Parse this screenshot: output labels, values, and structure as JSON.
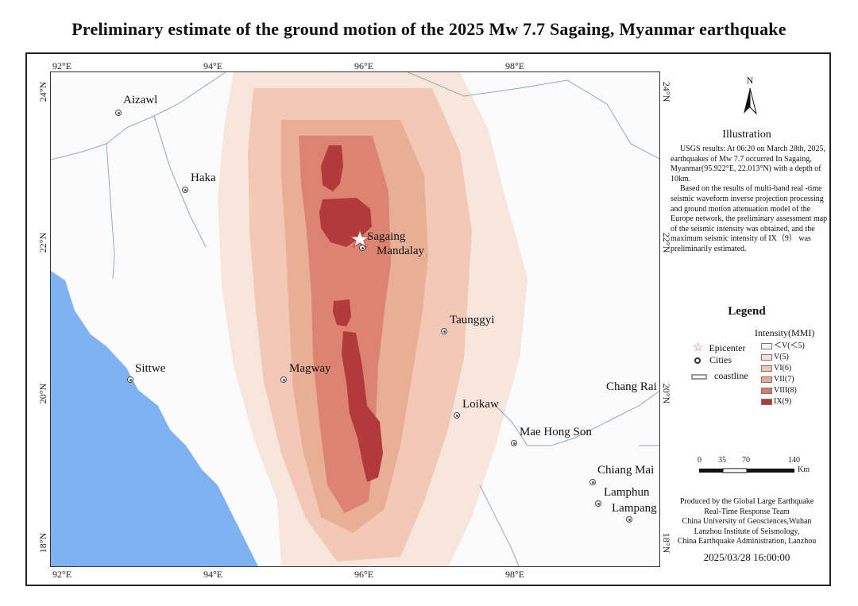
{
  "title": "Preliminary estimate of the ground motion of the 2025 Mw 7.7 Sagaing, Myanmar earthquake",
  "axes": {
    "lon_ticks": [
      "92°E",
      "94°E",
      "96°E",
      "98°E"
    ],
    "lat_ticks": [
      "24°N",
      "22°N",
      "20°N",
      "18°N"
    ]
  },
  "cities": [
    {
      "name": "Aizawl"
    },
    {
      "name": "Haka"
    },
    {
      "name": "Sagaing"
    },
    {
      "name": "Mandalay"
    },
    {
      "name": "Taunggyi"
    },
    {
      "name": "Sittwe"
    },
    {
      "name": "Magway"
    },
    {
      "name": "Loikaw"
    },
    {
      "name": "Mae Hong Son"
    },
    {
      "name": "Chang Rai"
    },
    {
      "name": "Chiang Mai"
    },
    {
      "name": "Lamphun"
    },
    {
      "name": "Lampang"
    }
  ],
  "north_label": "N",
  "illustration": {
    "title": "Illustration",
    "paragraphs": [
      "USGS results: At 06:20 on March 28th, 2025, earthquakes of Mw 7.7 occurred In Sagaing, Myanmar(95.922°E, 22.013°N) with a depth of 10km.",
      "Based on the results of multi-band real -time seismic waveform inverse projection processing and ground motion attenuation model of the Europe network, the preliminary assessment map of the seismic intensity was obtained, and the maximum seismic intensity of IX（9） was preliminarily estimated."
    ]
  },
  "legend": {
    "title": "Legend",
    "epicenter": "Epicenter",
    "cities": "Cities",
    "coastline": "coastline",
    "intensity_title": "Intensity(MMI)",
    "intensity_classes": [
      {
        "label": "＜V(＜5)",
        "color": "#f6f2ee"
      },
      {
        "label": "V(5)",
        "color": "#f7e0d4"
      },
      {
        "label": "VI(6)",
        "color": "#f1c5b0"
      },
      {
        "label": "VII(7)",
        "color": "#e8a890"
      },
      {
        "label": "VIII(8)",
        "color": "#d97a68"
      },
      {
        "label": "IX(9)",
        "color": "#b23a3a"
      }
    ]
  },
  "scale_bar": {
    "labels": [
      "0",
      "35",
      "70",
      "140"
    ],
    "unit": "Km"
  },
  "credits": [
    "Produced by the Global Large Earthquake",
    "Real-Time Response Team",
    "China University of Geosciences,Wuhan",
    "Lanzhou Institute of Seismology,",
    "China Earthquake Administration, Lanzhou"
  ],
  "date": "2025/03/28 16:00:00",
  "colors": {
    "sea": "#7fb2f0",
    "land": "#fbfbfb",
    "border": "#9aa"
  }
}
